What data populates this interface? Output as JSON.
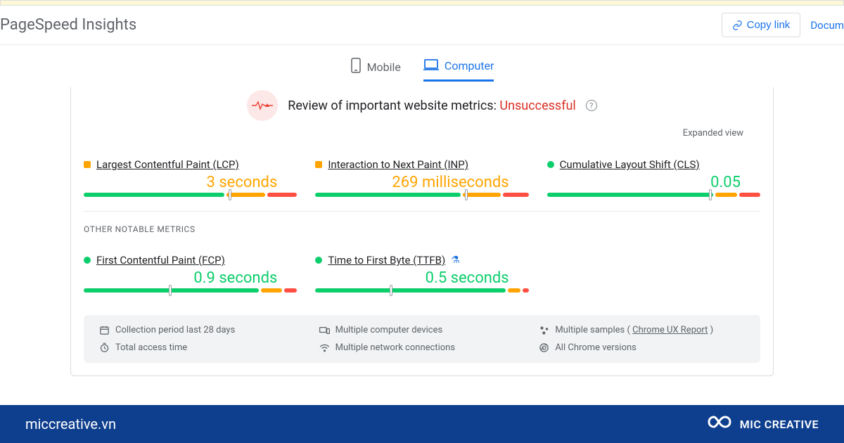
{
  "colors": {
    "blue": "#1a73e8",
    "red": "#d93025",
    "green": "#0cce6b",
    "orange": "#ffa400",
    "red_seg": "#ff4e42",
    "grey_text": "#5f6368",
    "banner": "#0e3f8e"
  },
  "header": {
    "brand": "PageSpeed Insights",
    "copy_link": "Copy link",
    "docs": "Docum"
  },
  "tabs": {
    "mobile": "Mobile",
    "computer": "Computer",
    "active": "computer"
  },
  "status": {
    "prefix": "Review of important website metrics: ",
    "word": "Unsuccessful",
    "icon_glyph": "⟿▲·"
  },
  "expanded": "Expanded view",
  "metrics_primary": [
    {
      "key": "lcp",
      "label": "Largest Contentful Paint (LCP)",
      "marker_shape": "sq",
      "marker_color": "#ffa400",
      "value": "3 seconds",
      "value_color": "#ffa400",
      "segments": [
        {
          "color": "#0cce6b",
          "pct": 66
        },
        {
          "color": "#ffa400",
          "pct": 18
        },
        {
          "color": "#ff4e42",
          "pct": 14
        }
      ],
      "pointer_pct": 68
    },
    {
      "key": "inp",
      "label": "Interaction to Next Paint (INP)",
      "marker_shape": "sq",
      "marker_color": "#ffa400",
      "value": "269 milliseconds",
      "value_color": "#ffa400",
      "segments": [
        {
          "color": "#0cce6b",
          "pct": 68
        },
        {
          "color": "#ffa400",
          "pct": 18
        },
        {
          "color": "#ff4e42",
          "pct": 12
        }
      ],
      "pointer_pct": 70
    },
    {
      "key": "cls",
      "label": "Cumulative Layout Shift (CLS)",
      "marker_shape": "ci",
      "marker_color": "#0cce6b",
      "value": "0.05",
      "value_color": "#0cce6b",
      "segments": [
        {
          "color": "#0cce6b",
          "pct": 78
        },
        {
          "color": "#ffa400",
          "pct": 10
        },
        {
          "color": "#ff4e42",
          "pct": 10
        }
      ],
      "pointer_pct": 76
    }
  ],
  "other_head": "OTHER NOTABLE METRICS",
  "metrics_other": [
    {
      "key": "fcp",
      "label": "First Contentful Paint (FCP)",
      "marker_shape": "ci",
      "marker_color": "#0cce6b",
      "value": "0.9 seconds",
      "value_color": "#0cce6b",
      "segments": [
        {
          "color": "#0cce6b",
          "pct": 82
        },
        {
          "color": "#ffa400",
          "pct": 10
        },
        {
          "color": "#ff4e42",
          "pct": 6
        }
      ],
      "pointer_pct": 40,
      "flask": false
    },
    {
      "key": "ttfb",
      "label": "Time to First Byte (TTFB)",
      "marker_shape": "ci",
      "marker_color": "#0cce6b",
      "value": "0.5 seconds",
      "value_color": "#0cce6b",
      "segments": [
        {
          "color": "#0cce6b",
          "pct": 90
        },
        {
          "color": "#ffa400",
          "pct": 6
        },
        {
          "color": "#ff4e42",
          "pct": 3
        }
      ],
      "pointer_pct": 35,
      "flask": true
    }
  ],
  "footer_rows": [
    {
      "icon": "calendar",
      "text": "Collection period last 28 days"
    },
    {
      "icon": "devices",
      "text": "Multiple computer devices"
    },
    {
      "icon": "samples",
      "text": "Multiple samples ( ",
      "link": "Chrome UX Report",
      "tail": " )"
    },
    {
      "icon": "clock",
      "text": "Total access time"
    },
    {
      "icon": "wifi",
      "text": "Multiple network connections"
    },
    {
      "icon": "chrome",
      "text": "All Chrome versions"
    }
  ],
  "banner": {
    "domain": "miccreative.vn",
    "brand": "MIC CREATIVE"
  }
}
